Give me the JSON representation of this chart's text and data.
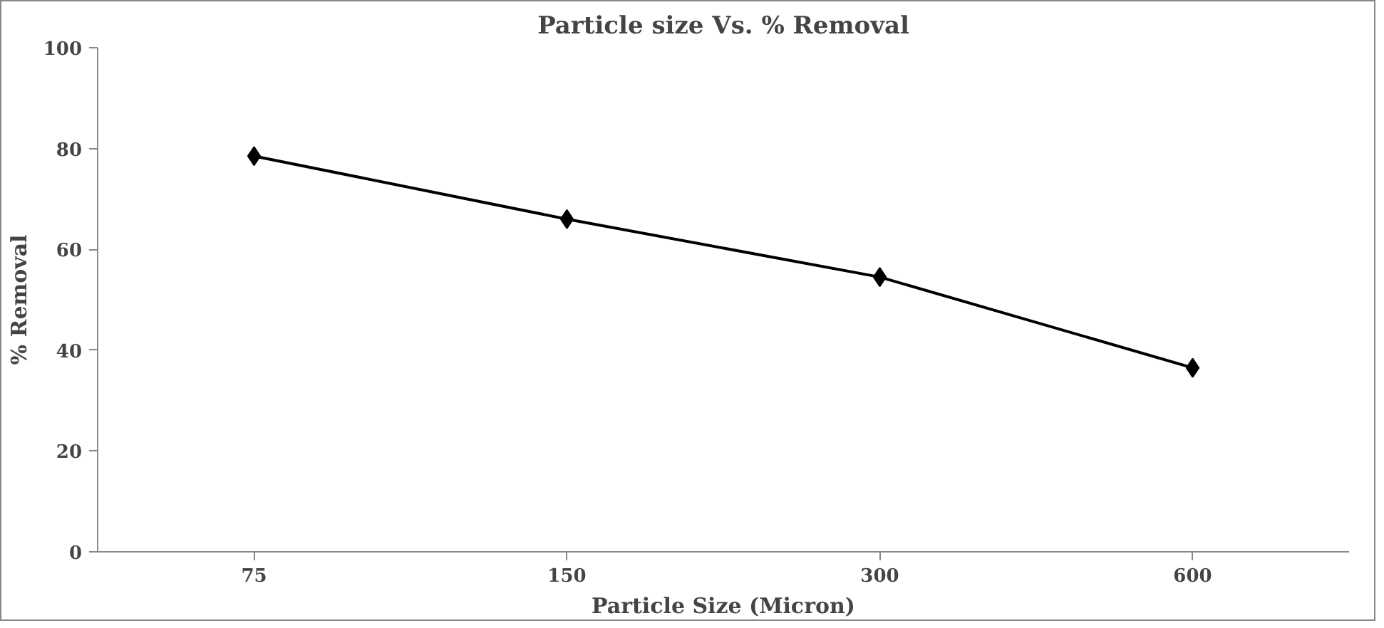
{
  "chart_data": {
    "type": "line",
    "title": "Particle size Vs. % Removal",
    "xlabel": "Particle Size (Micron)",
    "ylabel": "% Removal",
    "categories": [
      "75",
      "150",
      "300",
      "600"
    ],
    "series": [
      {
        "color": "#000000",
        "values": [
          78.5,
          66,
          54.5,
          36.5
        ]
      }
    ],
    "ylim": [
      0,
      100
    ],
    "yticks": [
      0,
      20,
      40,
      60,
      80,
      100
    ],
    "grid": false,
    "marker": "diamond",
    "line_style": "solid"
  }
}
